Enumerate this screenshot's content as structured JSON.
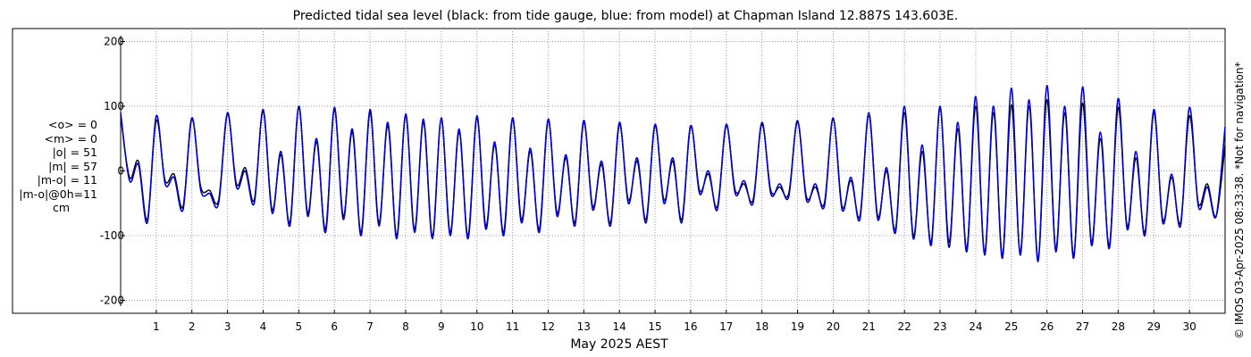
{
  "title": "Predicted tidal sea level (black: from tide gauge, blue: from model) at Chapman Island 12.887S 143.603E.",
  "stats": [
    "<o> = 0",
    "<m> = 0",
    "|o| = 51",
    "|m| = 57",
    "|m-o| = 11",
    "|m-o|@0h=11"
  ],
  "stats_unit": "cm",
  "copyright": "© IMOS 03-Apr-2025 08:33:38. *Not for navigation*",
  "colors": {
    "gauge": "#000000",
    "model": "#0000cc",
    "grid": "#9999bb",
    "axis": "#000000"
  },
  "chart_data": {
    "type": "line",
    "title": "Predicted tidal sea level (black: from tide gauge, blue: from model) at Chapman Island 12.887S 143.603E.",
    "xlabel": "May 2025 AEST",
    "ylabel": "",
    "x_unit": "day of May 2025",
    "xlim": [
      0.0,
      31.0
    ],
    "ylim": [
      -220,
      220
    ],
    "y_ticks": [
      200,
      100,
      0,
      -100,
      -200
    ],
    "x_tick_labels": [
      "1",
      "2",
      "3",
      "4",
      "5",
      "6",
      "7",
      "8",
      "9",
      "10",
      "11",
      "12",
      "13",
      "14",
      "15",
      "16",
      "17",
      "18",
      "19",
      "20",
      "21",
      "22",
      "23",
      "24",
      "25",
      "26",
      "27",
      "28",
      "29",
      "30"
    ],
    "grid": true,
    "legend": "none",
    "series": [
      {
        "color": "#000000",
        "x": [
          0.0,
          0.25,
          0.5,
          0.75,
          1.0,
          1.25,
          1.5,
          1.75,
          2.0,
          2.25,
          2.5,
          2.75,
          3.0,
          3.25,
          3.5,
          3.75,
          4.0,
          4.25,
          4.5,
          4.75,
          5.0,
          5.25,
          5.5,
          5.75,
          6.0,
          6.25,
          6.5,
          6.75,
          7.0,
          7.25,
          7.5,
          7.75,
          8.0,
          8.25,
          8.5,
          8.75,
          9.0,
          9.25,
          9.5,
          9.75,
          10.0,
          10.25,
          10.5,
          10.75,
          11.0,
          11.25,
          11.5,
          11.75,
          12.0,
          12.25,
          12.5,
          12.75,
          13.0,
          13.25,
          13.5,
          13.75,
          14.0,
          14.25,
          14.5,
          14.75,
          15.0,
          15.25,
          15.5,
          15.75,
          16.0,
          16.25,
          16.5,
          16.75,
          17.0,
          17.25,
          17.5,
          17.75,
          18.0,
          18.25,
          18.5,
          18.75,
          19.0,
          19.25,
          19.5,
          19.75,
          20.0,
          20.25,
          20.5,
          20.75,
          21.0,
          21.25,
          21.5,
          21.75,
          22.0,
          22.25,
          22.5,
          22.75,
          23.0,
          23.25,
          23.5,
          23.75,
          24.0,
          24.25,
          24.5,
          24.75,
          25.0,
          25.25,
          25.5,
          25.75,
          26.0,
          26.25,
          26.5,
          26.75,
          27.0,
          27.25,
          27.5,
          27.75,
          28.0,
          28.25,
          28.5,
          28.75,
          29.0,
          29.25,
          29.5,
          29.75,
          30.0,
          30.25,
          30.5,
          30.75,
          31.0
        ],
        "y": [
          85,
          -10,
          15,
          -75,
          78,
          -15,
          -5,
          -55,
          80,
          -25,
          -30,
          -45,
          88,
          -20,
          5,
          -45,
          92,
          -60,
          25,
          -80,
          98,
          -65,
          45,
          -90,
          95,
          -70,
          60,
          -95,
          90,
          -80,
          70,
          -100,
          85,
          -90,
          75,
          -100,
          80,
          -95,
          60,
          -100,
          82,
          -85,
          40,
          -95,
          80,
          -75,
          30,
          -90,
          78,
          -65,
          20,
          -80,
          75,
          -55,
          10,
          -80,
          72,
          -45,
          15,
          -75,
          70,
          -45,
          15,
          -75,
          68,
          -30,
          -5,
          -55,
          70,
          -30,
          -20,
          -45,
          72,
          -30,
          -25,
          -35,
          75,
          -40,
          -25,
          -50,
          80,
          -55,
          -15,
          -70,
          85,
          -70,
          0,
          -90,
          90,
          -100,
          30,
          -110,
          95,
          -110,
          65,
          -120,
          100,
          -125,
          90,
          -130,
          102,
          -125,
          100,
          -135,
          110,
          -120,
          90,
          -130,
          105,
          -110,
          50,
          -115,
          98,
          -85,
          20,
          -95,
          90,
          -75,
          -10,
          -80,
          85,
          -50,
          -20,
          -70,
          40
        ]
      },
      {
        "color": "#0000cc",
        "x": [
          0.0,
          0.25,
          0.5,
          0.75,
          1.0,
          1.25,
          1.5,
          1.75,
          2.0,
          2.25,
          2.5,
          2.75,
          3.0,
          3.25,
          3.5,
          3.75,
          4.0,
          4.25,
          4.5,
          4.75,
          5.0,
          5.25,
          5.5,
          5.75,
          6.0,
          6.25,
          6.5,
          6.75,
          7.0,
          7.25,
          7.5,
          7.75,
          8.0,
          8.25,
          8.5,
          8.75,
          9.0,
          9.25,
          9.5,
          9.75,
          10.0,
          10.25,
          10.5,
          10.75,
          11.0,
          11.25,
          11.5,
          11.75,
          12.0,
          12.25,
          12.5,
          12.75,
          13.0,
          13.25,
          13.5,
          13.75,
          14.0,
          14.25,
          14.5,
          14.75,
          15.0,
          15.25,
          15.5,
          15.75,
          16.0,
          16.25,
          16.5,
          16.75,
          17.0,
          17.25,
          17.5,
          17.75,
          18.0,
          18.25,
          18.5,
          18.75,
          19.0,
          19.25,
          19.5,
          19.75,
          20.0,
          20.25,
          20.5,
          20.75,
          21.0,
          21.25,
          21.5,
          21.75,
          22.0,
          22.25,
          22.5,
          22.75,
          23.0,
          23.25,
          23.5,
          23.75,
          24.0,
          24.25,
          24.5,
          24.75,
          25.0,
          25.25,
          25.5,
          25.75,
          26.0,
          26.25,
          26.5,
          26.75,
          27.0,
          27.25,
          27.5,
          27.75,
          28.0,
          28.25,
          28.5,
          28.75,
          29.0,
          29.25,
          29.5,
          29.75,
          30.0,
          30.25,
          30.5,
          30.75,
          31.0
        ],
        "y": [
          90,
          -15,
          10,
          -80,
          85,
          -20,
          -10,
          -60,
          82,
          -30,
          -35,
          -50,
          90,
          -25,
          0,
          -50,
          95,
          -65,
          30,
          -85,
          100,
          -70,
          50,
          -95,
          98,
          -75,
          65,
          -100,
          95,
          -85,
          75,
          -105,
          88,
          -95,
          80,
          -105,
          82,
          -100,
          65,
          -105,
          85,
          -90,
          45,
          -100,
          82,
          -80,
          35,
          -95,
          80,
          -70,
          25,
          -85,
          78,
          -60,
          15,
          -85,
          75,
          -50,
          20,
          -80,
          72,
          -50,
          20,
          -80,
          70,
          -35,
          0,
          -60,
          72,
          -35,
          -15,
          -50,
          75,
          -35,
          -20,
          -40,
          78,
          -45,
          -20,
          -55,
          82,
          -60,
          -10,
          -75,
          90,
          -75,
          5,
          -95,
          100,
          -105,
          40,
          -115,
          100,
          -118,
          75,
          -125,
          115,
          -130,
          100,
          -135,
          128,
          -130,
          110,
          -140,
          132,
          -125,
          100,
          -135,
          130,
          -115,
          60,
          -120,
          112,
          -90,
          30,
          -100,
          95,
          -80,
          -5,
          -85,
          98,
          -55,
          -25,
          -70,
          68
        ]
      }
    ]
  }
}
